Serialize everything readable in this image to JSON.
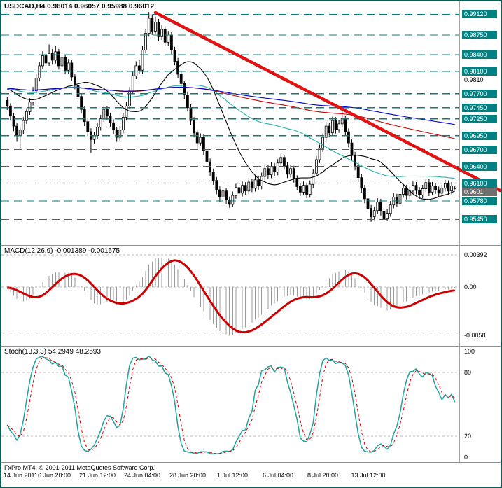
{
  "window": {
    "border_color": "#0c5f57"
  },
  "footer": {
    "copyright": "FxPro MT4, © 2001-2011 MetaQuotes Software Corp."
  },
  "colors": {
    "background": "#ffffff",
    "level": "#008080",
    "bull": "#ffffff",
    "bear": "#000000",
    "wick": "#000000",
    "trend": "#e01212",
    "axis_box_bg": "#008080",
    "axis_box_fg": "#ffffff",
    "current_box_bg": "#6f6f6f",
    "macd_hist": "#9a9a9a",
    "macd_signal": "#cc0000",
    "stoch_main": "#1fa39e",
    "stoch_signal": "#cc0000",
    "grid_dash": "#b8b8b8"
  },
  "chart_data": [
    {
      "type": "candlestick",
      "symbol": "USDCAD",
      "timeframe": "H4",
      "ohlc_text": "USDCAD,H4 0.96014 0.96057 0.95988 0.96012",
      "open": 0.96014,
      "high": 0.96057,
      "low": 0.95988,
      "close": 0.96012,
      "ylim": [
        0.9503,
        0.9925
      ],
      "levels": [
        {
          "price": 0.9912,
          "label": "0.99120"
        },
        {
          "price": 0.9875,
          "label": "0.98750"
        },
        {
          "price": 0.984,
          "label": "0.98400"
        },
        {
          "price": 0.981,
          "label": "0.98100"
        },
        {
          "price": 0.977,
          "label": "0.97700"
        },
        {
          "price": 0.9745,
          "label": "0.97450"
        },
        {
          "price": 0.9725,
          "label": "0.97250"
        },
        {
          "price": 0.9695,
          "label": "0.96950"
        },
        {
          "price": 0.967,
          "label": "0.96700"
        },
        {
          "price": 0.964,
          "label": "0.96400"
        },
        {
          "price": 0.961,
          "label": "0.96100"
        },
        {
          "price": 0.9578,
          "label": "0.95780"
        },
        {
          "price": 0.9545,
          "label": "0.95450"
        }
      ],
      "axis_ticks": [
        {
          "price": 0.981,
          "label": "0.9810"
        }
      ],
      "current_price": {
        "price": 0.96012,
        "label": "0.9601"
      },
      "moving_averages": [
        {
          "period": 21,
          "color": "#000000"
        },
        {
          "period": 55,
          "color": "#20b2aa"
        },
        {
          "period": 144,
          "color": "#cc0000"
        },
        {
          "period": 200,
          "color": "#0000cc"
        }
      ],
      "ma_warmup_bars": 120,
      "ma_warmup_price": 0.978,
      "trendline": {
        "from_bar": 46,
        "from_price": 0.9915,
        "to_bar": 153,
        "to_price": 0.9597,
        "color": "#e01212",
        "width": 4.5
      },
      "time_labels": [
        {
          "bar": 0,
          "label": "14 Jun 2011"
        },
        {
          "bar": 14,
          "label": "16 Jun 20:00"
        },
        {
          "bar": 28,
          "label": "21 Jun 12:00"
        },
        {
          "bar": 42,
          "label": "24 Jun 04:00"
        },
        {
          "bar": 56,
          "label": "28 Jun 20:00"
        },
        {
          "bar": 70,
          "label": "1 Jul 12:00"
        },
        {
          "bar": 84,
          "label": "6 Jul 04:00"
        },
        {
          "bar": 98,
          "label": "8 Jul 20:00"
        },
        {
          "bar": 112,
          "label": "13 Jul 12:00"
        }
      ],
      "candles": [
        [
          0.9758,
          0.9764,
          0.9741,
          0.9748
        ],
        [
          0.9748,
          0.9753,
          0.9722,
          0.973
        ],
        [
          0.973,
          0.9735,
          0.9703,
          0.9712
        ],
        [
          0.9712,
          0.9718,
          0.9684,
          0.9695
        ],
        [
          0.9695,
          0.9711,
          0.9672,
          0.9705
        ],
        [
          0.9705,
          0.9728,
          0.9698,
          0.9722
        ],
        [
          0.9722,
          0.9744,
          0.9716,
          0.9738
        ],
        [
          0.9738,
          0.9762,
          0.9732,
          0.9755
        ],
        [
          0.9755,
          0.9782,
          0.9749,
          0.9775
        ],
        [
          0.9775,
          0.9805,
          0.9769,
          0.9798
        ],
        [
          0.9798,
          0.9827,
          0.9792,
          0.982
        ],
        [
          0.982,
          0.9846,
          0.9814,
          0.9838
        ],
        [
          0.9838,
          0.9844,
          0.9818,
          0.9825
        ],
        [
          0.9825,
          0.9858,
          0.982,
          0.9842
        ],
        [
          0.9842,
          0.985,
          0.9822,
          0.983
        ],
        [
          0.983,
          0.9856,
          0.9824,
          0.9845
        ],
        [
          0.9845,
          0.985,
          0.9813,
          0.982
        ],
        [
          0.982,
          0.9843,
          0.9814,
          0.9835
        ],
        [
          0.9835,
          0.984,
          0.9805,
          0.9812
        ],
        [
          0.9812,
          0.9832,
          0.9806,
          0.9825
        ],
        [
          0.9825,
          0.983,
          0.9793,
          0.98
        ],
        [
          0.98,
          0.9806,
          0.9778,
          0.9785
        ],
        [
          0.9785,
          0.979,
          0.9757,
          0.9765
        ],
        [
          0.9765,
          0.977,
          0.9735,
          0.9742
        ],
        [
          0.9742,
          0.9747,
          0.9712,
          0.972
        ],
        [
          0.972,
          0.9726,
          0.9694,
          0.9702
        ],
        [
          0.9702,
          0.9708,
          0.9664,
          0.9688
        ],
        [
          0.9688,
          0.9702,
          0.9681,
          0.9695
        ],
        [
          0.9695,
          0.9717,
          0.9689,
          0.971
        ],
        [
          0.971,
          0.9732,
          0.9704,
          0.9725
        ],
        [
          0.9725,
          0.9749,
          0.9719,
          0.9742
        ],
        [
          0.9742,
          0.9748,
          0.9723,
          0.973
        ],
        [
          0.973,
          0.9736,
          0.9711,
          0.9718
        ],
        [
          0.9718,
          0.9724,
          0.9698,
          0.9705
        ],
        [
          0.9705,
          0.9711,
          0.9684,
          0.9692
        ],
        [
          0.9692,
          0.9712,
          0.9686,
          0.9705
        ],
        [
          0.9705,
          0.9735,
          0.9699,
          0.9728
        ],
        [
          0.9728,
          0.9755,
          0.9722,
          0.9748
        ],
        [
          0.9748,
          0.9782,
          0.9742,
          0.9775
        ],
        [
          0.9775,
          0.9809,
          0.9769,
          0.9802
        ],
        [
          0.9802,
          0.9828,
          0.9796,
          0.982
        ],
        [
          0.982,
          0.983,
          0.9805,
          0.9812
        ],
        [
          0.9812,
          0.9856,
          0.9806,
          0.9848
        ],
        [
          0.9848,
          0.9886,
          0.9842,
          0.9878
        ],
        [
          0.9878,
          0.9916,
          0.9872,
          0.9905
        ],
        [
          0.9905,
          0.9912,
          0.9875,
          0.9882
        ],
        [
          0.9882,
          0.9908,
          0.9876,
          0.9898
        ],
        [
          0.9898,
          0.9904,
          0.9864,
          0.9872
        ],
        [
          0.9872,
          0.9893,
          0.9866,
          0.9885
        ],
        [
          0.9885,
          0.9891,
          0.9855,
          0.9862
        ],
        [
          0.9862,
          0.9882,
          0.9856,
          0.9875
        ],
        [
          0.9875,
          0.988,
          0.9841,
          0.9848
        ],
        [
          0.9848,
          0.9854,
          0.9821,
          0.9828
        ],
        [
          0.9828,
          0.9834,
          0.9798,
          0.9805
        ],
        [
          0.9805,
          0.9811,
          0.978,
          0.9788
        ],
        [
          0.9788,
          0.9793,
          0.976,
          0.9768
        ],
        [
          0.9768,
          0.9774,
          0.9738,
          0.9745
        ],
        [
          0.9745,
          0.9751,
          0.9714,
          0.9722
        ],
        [
          0.9722,
          0.9728,
          0.9692,
          0.97
        ],
        [
          0.97,
          0.9706,
          0.9674,
          0.9682
        ],
        [
          0.9682,
          0.9699,
          0.9676,
          0.9692
        ],
        [
          0.9692,
          0.9697,
          0.966,
          0.9668
        ],
        [
          0.9668,
          0.9674,
          0.964,
          0.9648
        ],
        [
          0.9648,
          0.9654,
          0.9622,
          0.963
        ],
        [
          0.963,
          0.9636,
          0.9607,
          0.9615
        ],
        [
          0.9615,
          0.9621,
          0.959,
          0.9598
        ],
        [
          0.9598,
          0.9604,
          0.9576,
          0.9585
        ],
        [
          0.9585,
          0.9603,
          0.9579,
          0.9596
        ],
        [
          0.9596,
          0.9601,
          0.9572,
          0.958
        ],
        [
          0.958,
          0.9586,
          0.9566,
          0.9572
        ],
        [
          0.9572,
          0.9595,
          0.9567,
          0.9588
        ],
        [
          0.9588,
          0.9609,
          0.9582,
          0.9602
        ],
        [
          0.9602,
          0.9608,
          0.9585,
          0.9592
        ],
        [
          0.9592,
          0.9613,
          0.9586,
          0.9606
        ],
        [
          0.9606,
          0.9612,
          0.9589,
          0.9596
        ],
        [
          0.9596,
          0.9619,
          0.959,
          0.9612
        ],
        [
          0.9612,
          0.9618,
          0.9594,
          0.9601
        ],
        [
          0.9601,
          0.9623,
          0.9595,
          0.9616
        ],
        [
          0.9616,
          0.9622,
          0.9598,
          0.9605
        ],
        [
          0.9605,
          0.9629,
          0.9599,
          0.9622
        ],
        [
          0.9622,
          0.9643,
          0.9616,
          0.9636
        ],
        [
          0.9636,
          0.9642,
          0.9618,
          0.9625
        ],
        [
          0.9625,
          0.9647,
          0.9619,
          0.964
        ],
        [
          0.964,
          0.9646,
          0.9623,
          0.963
        ],
        [
          0.963,
          0.9653,
          0.9624,
          0.9646
        ],
        [
          0.9646,
          0.9662,
          0.964,
          0.9656
        ],
        [
          0.9656,
          0.9661,
          0.9634,
          0.9641
        ],
        [
          0.9641,
          0.9647,
          0.9619,
          0.9626
        ],
        [
          0.9626,
          0.9643,
          0.962,
          0.9636
        ],
        [
          0.9636,
          0.9641,
          0.9611,
          0.9618
        ],
        [
          0.9618,
          0.9624,
          0.9597,
          0.9604
        ],
        [
          0.9604,
          0.961,
          0.9587,
          0.9594
        ],
        [
          0.9594,
          0.9613,
          0.9588,
          0.9606
        ],
        [
          0.9606,
          0.9611,
          0.9583,
          0.959
        ],
        [
          0.959,
          0.9615,
          0.9584,
          0.9608
        ],
        [
          0.9608,
          0.9635,
          0.9602,
          0.9628
        ],
        [
          0.9628,
          0.9659,
          0.9622,
          0.9652
        ],
        [
          0.9652,
          0.9679,
          0.9646,
          0.9672
        ],
        [
          0.9672,
          0.9699,
          0.9666,
          0.9692
        ],
        [
          0.9692,
          0.9719,
          0.9686,
          0.9712
        ],
        [
          0.9712,
          0.9718,
          0.9693,
          0.97
        ],
        [
          0.97,
          0.9729,
          0.9694,
          0.9722
        ],
        [
          0.9722,
          0.9728,
          0.9699,
          0.9706
        ],
        [
          0.9706,
          0.9723,
          0.97,
          0.9716
        ],
        [
          0.9716,
          0.9738,
          0.971,
          0.9726
        ],
        [
          0.9726,
          0.9731,
          0.9695,
          0.9702
        ],
        [
          0.9702,
          0.9708,
          0.9674,
          0.9682
        ],
        [
          0.9682,
          0.9688,
          0.9652,
          0.966
        ],
        [
          0.966,
          0.9666,
          0.9633,
          0.9641
        ],
        [
          0.9641,
          0.9647,
          0.9612,
          0.962
        ],
        [
          0.962,
          0.9626,
          0.9593,
          0.9601
        ],
        [
          0.9601,
          0.9607,
          0.9574,
          0.9582
        ],
        [
          0.9582,
          0.9588,
          0.9557,
          0.9565
        ],
        [
          0.9565,
          0.9571,
          0.9541,
          0.955
        ],
        [
          0.955,
          0.9568,
          0.9544,
          0.9561
        ],
        [
          0.9561,
          0.9583,
          0.9555,
          0.9576
        ],
        [
          0.9576,
          0.9582,
          0.9552,
          0.956
        ],
        [
          0.956,
          0.9566,
          0.954,
          0.9546
        ],
        [
          0.9546,
          0.9563,
          0.9542,
          0.9556
        ],
        [
          0.9556,
          0.9578,
          0.955,
          0.9571
        ],
        [
          0.9571,
          0.9592,
          0.9565,
          0.9585
        ],
        [
          0.9585,
          0.9591,
          0.9567,
          0.9574
        ],
        [
          0.9574,
          0.9597,
          0.9568,
          0.959
        ],
        [
          0.959,
          0.9608,
          0.9584,
          0.9601
        ],
        [
          0.9601,
          0.9607,
          0.9581,
          0.9588
        ],
        [
          0.9588,
          0.9603,
          0.9582,
          0.9596
        ],
        [
          0.9596,
          0.9613,
          0.959,
          0.9606
        ],
        [
          0.9606,
          0.9612,
          0.959,
          0.9597
        ],
        [
          0.9597,
          0.9603,
          0.9582,
          0.9589
        ],
        [
          0.9589,
          0.9607,
          0.9583,
          0.96
        ],
        [
          0.96,
          0.9618,
          0.9594,
          0.9611
        ],
        [
          0.9611,
          0.9617,
          0.9587,
          0.9594
        ],
        [
          0.9594,
          0.9612,
          0.9588,
          0.9605
        ],
        [
          0.9605,
          0.9611,
          0.9591,
          0.9598
        ],
        [
          0.9598,
          0.9604,
          0.9585,
          0.9592
        ],
        [
          0.9592,
          0.9608,
          0.9586,
          0.9601
        ],
        [
          0.9601,
          0.9616,
          0.9595,
          0.9609
        ],
        [
          0.9609,
          0.9615,
          0.9589,
          0.9596
        ],
        [
          0.9596,
          0.9612,
          0.959,
          0.9605
        ],
        [
          0.96014,
          0.96057,
          0.95988,
          0.96012
        ]
      ]
    },
    {
      "type": "macd",
      "title": "MACD(12,26,9) -0.001389 -0.001675",
      "params": [
        12,
        26,
        9
      ],
      "current": {
        "macd": -0.001389,
        "signal": -0.001675
      },
      "axis_labels": [
        {
          "value": 0.00392,
          "label": "0.00392"
        },
        {
          "value": 0,
          "label": "0.00"
        },
        {
          "value": -0.0058,
          "label": "-0.0058"
        }
      ]
    },
    {
      "type": "stochastic",
      "title": "Stoch(13,3,3) 54.2949 48.2593",
      "params": [
        13,
        3,
        3
      ],
      "current": {
        "k": 54.2949,
        "d": 48.2593
      },
      "levels": [
        80,
        20
      ],
      "axis_labels": [
        {
          "value": 100,
          "label": "100"
        },
        {
          "value": 80,
          "label": "80"
        },
        {
          "value": 20,
          "label": "20"
        },
        {
          "value": 0,
          "label": "0"
        }
      ]
    }
  ]
}
